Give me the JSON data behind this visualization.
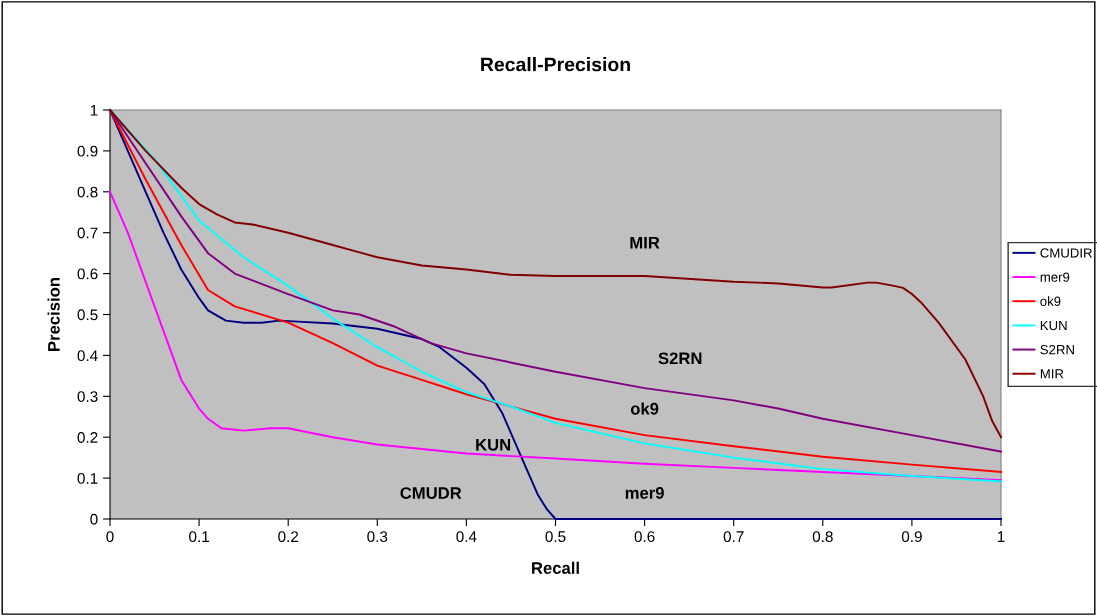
{
  "chart_data": {
    "type": "line",
    "title": "Recall-Precision",
    "xlabel": "Recall",
    "ylabel": "Precision",
    "xlim": [
      0,
      1
    ],
    "ylim": [
      0,
      1
    ],
    "xticks": [
      0,
      0.1,
      0.2,
      0.3,
      0.4,
      0.5,
      0.6,
      0.7,
      0.8,
      0.9,
      1
    ],
    "yticks": [
      0,
      0.1,
      0.2,
      0.3,
      0.4,
      0.5,
      0.6,
      0.7,
      0.8,
      0.9,
      1
    ],
    "grid": false,
    "legend": "right",
    "marker": "none",
    "line_style": "solid",
    "series": [
      {
        "name": "CMUDIR",
        "color": "#000080",
        "x": [
          0,
          0.02,
          0.04,
          0.06,
          0.08,
          0.1,
          0.11,
          0.13,
          0.15,
          0.17,
          0.19,
          0.25,
          0.3,
          0.35,
          0.37,
          0.4,
          0.42,
          0.44,
          0.46,
          0.48,
          0.49,
          0.5,
          0.6,
          0.7,
          0.8,
          0.9,
          1
        ],
        "values": [
          1,
          0.9,
          0.8,
          0.7,
          0.61,
          0.54,
          0.51,
          0.485,
          0.48,
          0.48,
          0.485,
          0.478,
          0.465,
          0.44,
          0.42,
          0.37,
          0.33,
          0.26,
          0.16,
          0.06,
          0.025,
          0,
          0,
          0,
          0,
          0,
          0
        ]
      },
      {
        "name": "mer9",
        "color": "#ff00ff",
        "x": [
          0,
          0.02,
          0.04,
          0.06,
          0.08,
          0.1,
          0.11,
          0.125,
          0.15,
          0.18,
          0.2,
          0.25,
          0.3,
          0.4,
          0.5,
          0.6,
          0.7,
          0.8,
          0.9,
          1
        ],
        "values": [
          0.8,
          0.7,
          0.58,
          0.46,
          0.34,
          0.27,
          0.245,
          0.222,
          0.216,
          0.222,
          0.222,
          0.2,
          0.182,
          0.16,
          0.148,
          0.135,
          0.125,
          0.115,
          0.105,
          0.095
        ]
      },
      {
        "name": "ok9",
        "color": "#ff0000",
        "x": [
          0,
          0.04,
          0.08,
          0.11,
          0.14,
          0.2,
          0.25,
          0.3,
          0.35,
          0.4,
          0.5,
          0.6,
          0.7,
          0.8,
          0.9,
          1
        ],
        "values": [
          1,
          0.83,
          0.67,
          0.56,
          0.52,
          0.48,
          0.43,
          0.375,
          0.34,
          0.305,
          0.245,
          0.205,
          0.178,
          0.152,
          0.133,
          0.115
        ]
      },
      {
        "name": "KUN",
        "color": "#00ffff",
        "x": [
          0,
          0.05,
          0.1,
          0.15,
          0.2,
          0.25,
          0.3,
          0.35,
          0.4,
          0.45,
          0.5,
          0.6,
          0.7,
          0.8,
          0.9,
          1
        ],
        "values": [
          1,
          0.88,
          0.73,
          0.64,
          0.57,
          0.49,
          0.42,
          0.36,
          0.31,
          0.275,
          0.235,
          0.185,
          0.15,
          0.122,
          0.105,
          0.092
        ]
      },
      {
        "name": "S2RN",
        "color": "#800080",
        "x": [
          0,
          0.04,
          0.08,
          0.11,
          0.14,
          0.2,
          0.25,
          0.28,
          0.32,
          0.36,
          0.4,
          0.5,
          0.6,
          0.7,
          0.75,
          0.8,
          0.9,
          1
        ],
        "values": [
          1,
          0.87,
          0.74,
          0.65,
          0.6,
          0.55,
          0.51,
          0.5,
          0.47,
          0.43,
          0.405,
          0.36,
          0.32,
          0.29,
          0.27,
          0.245,
          0.205,
          0.165
        ]
      },
      {
        "name": "MIR",
        "color": "#800000",
        "x": [
          0,
          0.04,
          0.08,
          0.1,
          0.12,
          0.14,
          0.16,
          0.2,
          0.25,
          0.28,
          0.3,
          0.35,
          0.4,
          0.45,
          0.5,
          0.6,
          0.7,
          0.75,
          0.8,
          0.81,
          0.85,
          0.86,
          0.88,
          0.89,
          0.9,
          0.91,
          0.93,
          0.96,
          0.98,
          0.99,
          1
        ],
        "values": [
          1,
          0.9,
          0.81,
          0.77,
          0.745,
          0.725,
          0.72,
          0.7,
          0.67,
          0.652,
          0.64,
          0.62,
          0.61,
          0.597,
          0.594,
          0.594,
          0.58,
          0.576,
          0.566,
          0.566,
          0.578,
          0.578,
          0.57,
          0.565,
          0.55,
          0.53,
          0.48,
          0.39,
          0.3,
          0.24,
          0.2
        ]
      }
    ],
    "annotations": [
      {
        "text": "MIR",
        "x": 0.6,
        "y": 0.594
      },
      {
        "text": "S2RN",
        "x": 0.64,
        "y": 0.318
      },
      {
        "text": "ok9",
        "x": 0.6,
        "y": 0.205
      },
      {
        "text": "KUN",
        "x": 0.43,
        "y": 0.29
      },
      {
        "text": "mer9",
        "x": 0.6,
        "y": 0.135
      },
      "CMUDR"
    ]
  }
}
